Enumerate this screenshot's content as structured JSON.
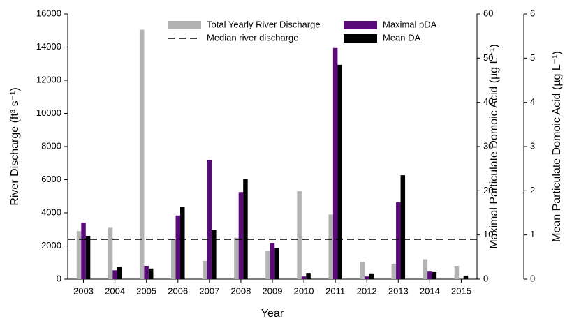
{
  "chart_data": {
    "type": "bar",
    "x_label": "Year",
    "y_label": "River Discharge (ft³ s⁻¹)",
    "y2_label": "Maximal  Particulate Domoic Acid (µg L⁻¹)",
    "y3_label": "Mean Particulate Domoic Acid (µg L⁻¹)",
    "categories": [
      "2003",
      "2004",
      "2005",
      "2006",
      "2007",
      "2008",
      "2009",
      "2010",
      "2011",
      "2012",
      "2013",
      "2014",
      "2015"
    ],
    "series": [
      {
        "name": "Total Yearly River Discharge",
        "color": "#b3b3b3",
        "axis": "y",
        "values": [
          2900,
          3100,
          15050,
          2400,
          1100,
          2500,
          1700,
          5300,
          3900,
          1050,
          930,
          1200,
          800
        ]
      },
      {
        "name": "Maximal pDA",
        "color": "#5a0a7a",
        "axis": "y2",
        "values": [
          12.8,
          2.0,
          3.0,
          14.4,
          27,
          19.7,
          8.2,
          0.6,
          52.3,
          0.6,
          17.4,
          1.7,
          0
        ]
      },
      {
        "name": "Mean DA",
        "color": "#000000",
        "axis": "y3",
        "values": [
          0.98,
          0.28,
          0.24,
          1.64,
          1.12,
          2.27,
          0.71,
          0.14,
          4.85,
          0.13,
          2.35,
          0.16,
          0.08
        ]
      }
    ],
    "reference_line": {
      "name": "Median river discharge",
      "value": 2400,
      "axis": "y"
    },
    "ylim": [
      0,
      16000
    ],
    "yticks": [
      0,
      2000,
      4000,
      6000,
      8000,
      10000,
      12000,
      14000,
      16000
    ],
    "y2lim": [
      0,
      60
    ],
    "y2ticks": [
      0,
      10,
      20,
      30,
      40,
      50,
      60
    ],
    "y3lim": [
      0,
      6
    ],
    "y3ticks": [
      0,
      1,
      2,
      3,
      4,
      5,
      6
    ]
  }
}
